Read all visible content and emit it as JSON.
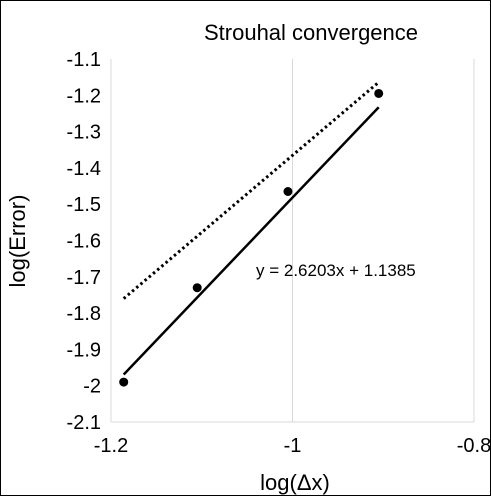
{
  "chart_data": {
    "type": "scatter",
    "title": "Strouhal convergence",
    "xlabel": "log(Δx)",
    "ylabel": "log(Error)",
    "xlim": [
      -1.2,
      -0.8
    ],
    "ylim": [
      -2.1,
      -1.1
    ],
    "x_ticks": [
      -1.2,
      -1,
      -0.8
    ],
    "x_tick_labels": [
      "-1.2",
      "-1",
      "-0.8"
    ],
    "y_ticks": [
      -1.1,
      -1.2,
      -1.3,
      -1.4,
      -1.5,
      -1.6,
      -1.7,
      -1.8,
      -1.9,
      -2,
      -2.1
    ],
    "y_tick_labels": [
      "-1.1",
      "-1.2",
      "-1.3",
      "-1.4",
      "-1.5",
      "-1.6",
      "-1.7",
      "-1.8",
      "-1.9",
      "-2",
      "-2.1"
    ],
    "grid": {
      "vertical": true,
      "horizontal": false
    },
    "points": {
      "x": [
        -1.186,
        -1.105,
        -1.005,
        -0.905
      ],
      "y": [
        -1.99,
        -1.73,
        -1.465,
        -1.195
      ]
    },
    "trendline": {
      "slope": 2.6203,
      "intercept": 1.1385,
      "x_range": [
        -1.186,
        -0.905
      ],
      "style": "solid"
    },
    "reference_line": {
      "x": [
        -1.186,
        -0.9055
      ],
      "y": [
        -1.76,
        -1.165
      ],
      "style": "dotted"
    },
    "annotations": [
      {
        "text": "y = 2.6203x + 1.1385",
        "x": -1.095,
        "y": -1.665
      }
    ],
    "colors": {
      "points": "#000000",
      "lines": "#000000",
      "grid": "#d9d9d9"
    }
  }
}
